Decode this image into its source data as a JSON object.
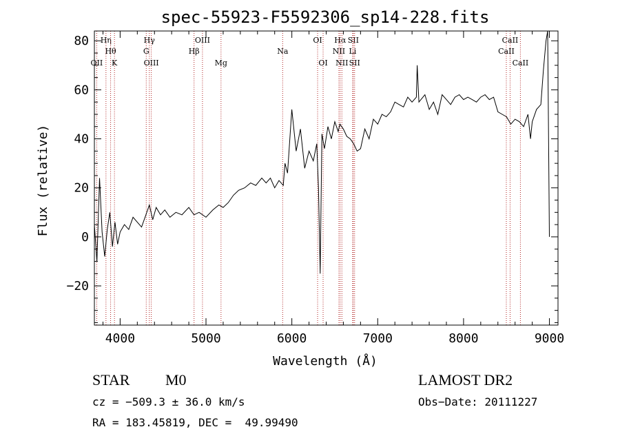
{
  "chart_data": {
    "type": "line",
    "title": "spec-55923-F5592306_sp14-228.fits",
    "xlabel": "Wavelength (Å)",
    "ylabel": "Flux (relative)",
    "xlim": [
      3700,
      9100
    ],
    "ylim": [
      -36,
      84
    ],
    "x_ticks": [
      4000,
      5000,
      6000,
      7000,
      8000,
      9000
    ],
    "y_ticks": [
      -20,
      0,
      20,
      40,
      60,
      80
    ],
    "series": [
      {
        "x": [
          3700,
          3730,
          3760,
          3790,
          3820,
          3850,
          3880,
          3910,
          3940,
          3970,
          4000,
          4050,
          4100,
          4150,
          4200,
          4250,
          4300,
          4340,
          4380,
          4420,
          4470,
          4520,
          4580,
          4650,
          4720,
          4800,
          4860,
          4920,
          5000,
          5080,
          5150,
          5200,
          5260,
          5320,
          5380,
          5450,
          5520,
          5580,
          5650,
          5700,
          5750,
          5800,
          5850,
          5900,
          5920,
          5950,
          6000,
          6050,
          6100,
          6150,
          6200,
          6250,
          6290,
          6310,
          6330,
          6350,
          6380,
          6420,
          6460,
          6500,
          6540,
          6560,
          6600,
          6640,
          6680,
          6720,
          6760,
          6800,
          6850,
          6900,
          6950,
          7000,
          7050,
          7100,
          7150,
          7200,
          7250,
          7300,
          7350,
          7400,
          7450,
          7460,
          7480,
          7550,
          7600,
          7650,
          7700,
          7750,
          7800,
          7850,
          7900,
          7950,
          8000,
          8050,
          8100,
          8150,
          8200,
          8250,
          8300,
          8350,
          8400,
          8450,
          8500,
          8550,
          8600,
          8650,
          8700,
          8750,
          8780,
          8800,
          8850,
          8900,
          8930,
          8960,
          8980,
          9000
        ],
        "y": [
          5,
          -10,
          24,
          2,
          -8,
          3,
          10,
          -4,
          6,
          -3,
          2,
          5,
          3,
          8,
          6,
          4,
          9,
          13,
          7,
          12,
          9,
          11,
          8,
          10,
          9,
          12,
          9,
          10,
          8,
          11,
          13,
          12,
          14,
          17,
          19,
          20,
          22,
          21,
          24,
          22,
          24,
          20,
          23,
          21,
          30,
          26,
          52,
          35,
          44,
          28,
          35,
          31,
          38,
          20,
          -15,
          42,
          36,
          45,
          40,
          47,
          43,
          46,
          44,
          41,
          40,
          38,
          35,
          36,
          44,
          40,
          48,
          46,
          50,
          49,
          51,
          55,
          54,
          53,
          57,
          55,
          57,
          70,
          55,
          58,
          52,
          55,
          50,
          58,
          56,
          54,
          57,
          58,
          56,
          57,
          56,
          55,
          57,
          58,
          56,
          57,
          51,
          50,
          49,
          46,
          48,
          47,
          45,
          50,
          40,
          47,
          52,
          54,
          68,
          80,
          84,
          0
        ]
      }
    ],
    "lines": [
      {
        "label": "Hη",
        "x": 3835,
        "row": 1
      },
      {
        "label": "Hθ",
        "x": 3889,
        "row": 2
      },
      {
        "label": "OII",
        "x": 3727,
        "row": 3
      },
      {
        "label": "K",
        "x": 3934,
        "row": 3
      },
      {
        "label": "Hγ",
        "x": 4340,
        "row": 1
      },
      {
        "label": "G",
        "x": 4304,
        "row": 2
      },
      {
        "label": "OIII",
        "x": 4363,
        "row": 3
      },
      {
        "label": "OIII",
        "x": 4959,
        "row": 1
      },
      {
        "label": "Hβ",
        "x": 4861,
        "row": 2
      },
      {
        "label": "Mg",
        "x": 5175,
        "row": 3
      },
      {
        "label": "Na",
        "x": 5893,
        "row": 2
      },
      {
        "label": "OI",
        "x": 6300,
        "row": 1
      },
      {
        "label": "OI",
        "x": 6364,
        "row": 3
      },
      {
        "label": "Hα",
        "x": 6563,
        "row": 1
      },
      {
        "label": "NII",
        "x": 6548,
        "row": 2
      },
      {
        "label": "NII",
        "x": 6583,
        "row": 3
      },
      {
        "label": "SII",
        "x": 6716,
        "row": 1
      },
      {
        "label": "Li",
        "x": 6708,
        "row": 2
      },
      {
        "label": "SII",
        "x": 6731,
        "row": 3
      },
      {
        "label": "CaII",
        "x": 8542,
        "row": 1
      },
      {
        "label": "CaII",
        "x": 8498,
        "row": 2
      },
      {
        "label": "CaII",
        "x": 8662,
        "row": 3
      }
    ],
    "grid": false,
    "legend": "none"
  },
  "info": {
    "object_class": "STAR",
    "subclass": "M0",
    "survey": "LAMOST DR2",
    "cz": "cz = −509.3 ± 36.0 km/s",
    "obs_date": "Obs−Date: 20111227",
    "coords": "RA = 183.45819, DEC =  49.99490"
  },
  "colors": {
    "axis": "#000000",
    "spectrum": "#000000",
    "line_marker": "#b02020"
  }
}
